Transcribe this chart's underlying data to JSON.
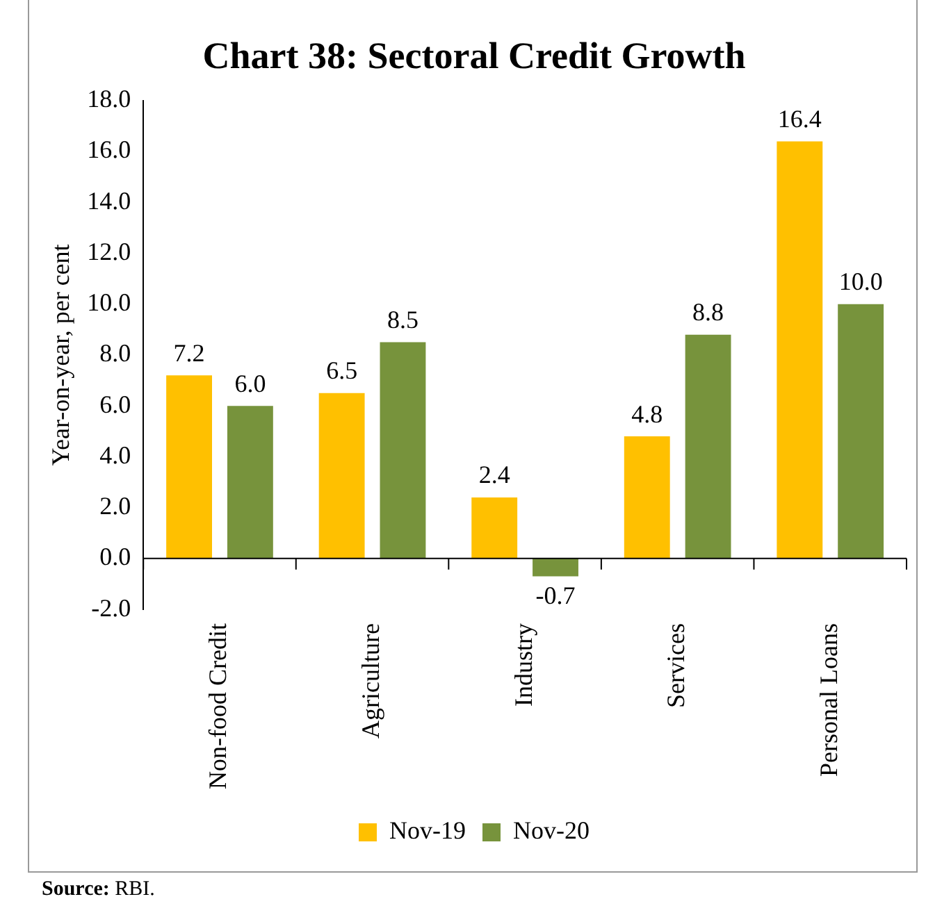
{
  "chart_data": {
    "type": "bar",
    "title": "Chart 38: Sectoral Credit Growth",
    "ylabel": "Year-on-year, per cent",
    "categories": [
      "Non-food Credit",
      "Agriculture",
      "Industry",
      "Services",
      "Personal Loans"
    ],
    "series": [
      {
        "name": "Nov-19",
        "color": "#ffc000",
        "values": [
          7.2,
          6.5,
          2.4,
          4.8,
          16.4
        ],
        "value_labels": [
          "7.2",
          "6.5",
          "2.4",
          "4.8",
          "16.4"
        ]
      },
      {
        "name": "Nov-20",
        "color": "#77933c",
        "values": [
          6.0,
          8.5,
          -0.7,
          8.8,
          10.0
        ],
        "value_labels": [
          "6.0",
          "8.5",
          "-0.7",
          "8.8",
          "10.0"
        ]
      }
    ],
    "ylim": [
      -2,
      18
    ],
    "yticks": [
      {
        "value": -2,
        "label": "-2.0"
      },
      {
        "value": 0,
        "label": "0.0"
      },
      {
        "value": 2,
        "label": "2.0"
      },
      {
        "value": 4,
        "label": "4.0"
      },
      {
        "value": 6,
        "label": "6.0"
      },
      {
        "value": 8,
        "label": "8.0"
      },
      {
        "value": 10,
        "label": "10.0"
      },
      {
        "value": 12,
        "label": "12.0"
      },
      {
        "value": 14,
        "label": "14.0"
      },
      {
        "value": 16,
        "label": "16.0"
      },
      {
        "value": 18,
        "label": "18.0"
      }
    ],
    "grid": false,
    "legend": "bottom",
    "annotations": [
      "Source: RBI."
    ]
  }
}
